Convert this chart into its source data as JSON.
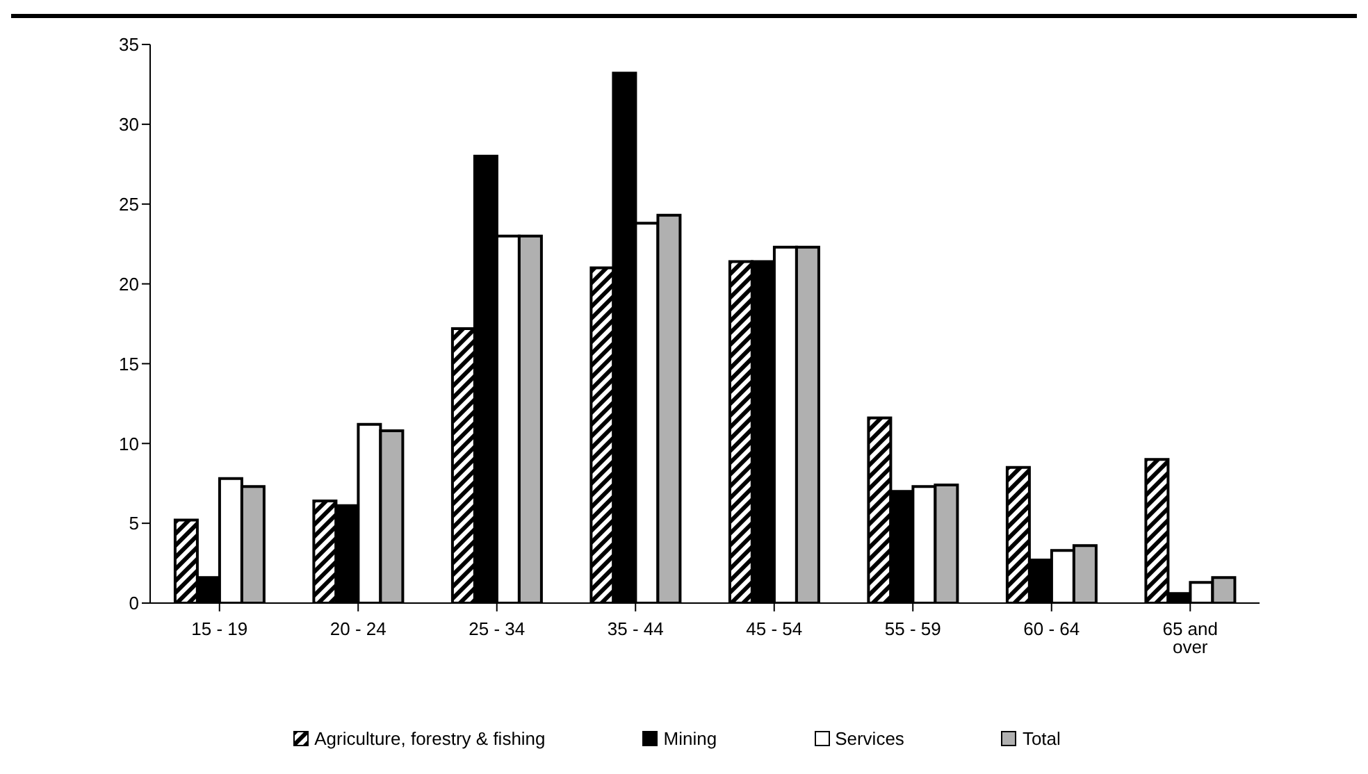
{
  "chart_data": {
    "type": "bar",
    "categories": [
      "15 - 19",
      "20 - 24",
      "25 - 34",
      "35 - 44",
      "45 - 54",
      "55 - 59",
      "60 - 64",
      "65 and over"
    ],
    "series": [
      {
        "name": "Agriculture, forestry & fishing",
        "color": "#000000",
        "values": [
          5.2,
          6.4,
          17.2,
          21.0,
          21.4,
          11.6,
          8.5,
          9.0
        ]
      },
      {
        "name": "Mining",
        "color": "#000000",
        "values": [
          1.6,
          6.1,
          28.0,
          33.2,
          21.4,
          7.0,
          2.7,
          0.6
        ]
      },
      {
        "name": "Services",
        "color": "#ffffff",
        "values": [
          7.8,
          11.2,
          23.0,
          23.8,
          22.3,
          7.3,
          3.3,
          1.3
        ]
      },
      {
        "name": "Total",
        "color": "#b0b0b0",
        "values": [
          7.3,
          10.8,
          23.0,
          24.3,
          22.3,
          7.4,
          3.6,
          1.6
        ]
      }
    ],
    "ylim": [
      0,
      35
    ],
    "yticks": [
      0,
      5,
      10,
      15,
      20,
      25,
      30,
      35
    ],
    "grid": false,
    "legend": "bottom"
  }
}
